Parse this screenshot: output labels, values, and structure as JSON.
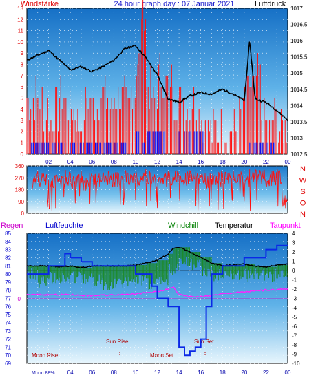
{
  "header": {
    "left_label": "Windstärke",
    "title": "24 hour graph day : 07 Januar 2021",
    "right_label": "Luftdruck"
  },
  "panel2": {
    "compass": [
      "N",
      "W",
      "S",
      "O",
      "N"
    ]
  },
  "panel3": {
    "legend": [
      {
        "key": "regen",
        "label": "Regen",
        "color": "#cc00cc"
      },
      {
        "key": "luftfeuchte",
        "label": "Luftfeuchte",
        "color": "#0000cc"
      },
      {
        "key": "windchill",
        "label": "Windchill",
        "color": "#008000"
      },
      {
        "key": "temperatur",
        "label": "Temperatur",
        "color": "#000000"
      },
      {
        "key": "taupunkt",
        "label": "Taupunkt",
        "color": "#ff00ff"
      }
    ],
    "astro": {
      "moon_rise": "Moon Rise",
      "sun_rise": "Sun Rise",
      "moon_set": "Moon Set",
      "sun_set": "Sun Set",
      "moon_phase": "Moon 88%"
    },
    "rain_zero_label": "0"
  },
  "chart_data": [
    {
      "type": "line",
      "name": "wind-and-pressure",
      "x_ticks": [
        "02",
        "04",
        "06",
        "08",
        "10",
        "12",
        "14",
        "16",
        "18",
        "20",
        "22",
        "00"
      ],
      "y_left_label": "Windstärke",
      "y_left_ticks": [
        "13",
        "12",
        "11",
        "10",
        "9",
        "8",
        "7",
        "6",
        "5",
        "4",
        "3",
        "2",
        "1",
        "0"
      ],
      "ylim_left": [
        0,
        13
      ],
      "y_right_label": "Luftdruck",
      "y_right_ticks": [
        "1017",
        "1016.5",
        "1016",
        "1015.5",
        "1015",
        "1014.5",
        "1014",
        "1013.5",
        "1013",
        "1012.5"
      ],
      "ylim_right": [
        1012.5,
        1017
      ],
      "pressure": {
        "x": [
          0,
          1,
          2,
          3,
          4,
          5,
          6,
          7,
          8,
          9,
          10,
          11,
          12,
          13,
          14,
          15,
          16,
          17,
          18,
          19,
          20,
          20.5,
          21,
          22,
          23,
          24
        ],
        "y": [
          1015.4,
          1015.55,
          1015.7,
          1015.4,
          1015.1,
          1015.2,
          1015.05,
          1015.2,
          1015.4,
          1015.75,
          1015.85,
          1015.45,
          1014.95,
          1014.2,
          1014.1,
          1014.3,
          1014.4,
          1014.35,
          1014.5,
          1014.35,
          1014.15,
          1016.0,
          1014.2,
          1014.1,
          1013.85,
          1013.55
        ]
      },
      "wind_gust": {
        "x": [
          0,
          0.5,
          1,
          1.5,
          2,
          2.5,
          3,
          3.5,
          4,
          4.5,
          5,
          5.5,
          6,
          6.5,
          7,
          7.5,
          8,
          8.5,
          9,
          9.5,
          10,
          10.5,
          11,
          11.5,
          12,
          12.5,
          13,
          13.5,
          14,
          14.5,
          15,
          15.5,
          16,
          16.5,
          17,
          17.5,
          18,
          18.5,
          19,
          19.5,
          20,
          20.5,
          21,
          21.5,
          22,
          22.5,
          23,
          23.5,
          24
        ],
        "y": [
          5,
          5,
          5,
          4,
          3,
          4,
          5,
          4,
          4,
          3,
          4,
          5,
          4,
          5,
          5,
          4,
          5,
          5,
          4,
          6,
          8,
          13,
          6,
          5,
          7,
          6,
          7,
          5,
          5,
          4,
          5,
          4,
          3,
          2,
          2,
          2,
          2,
          2,
          2,
          3,
          5,
          6,
          7,
          3,
          2,
          3,
          2,
          2,
          2
        ]
      },
      "wind_avg": {
        "x": [
          0,
          0.5,
          1,
          1.5,
          2,
          2.5,
          3,
          3.5,
          4,
          4.5,
          5,
          5.5,
          6,
          6.5,
          7,
          7.5,
          8,
          8.5,
          9,
          9.5,
          10,
          10.5,
          11,
          11.5,
          12,
          12.5,
          13,
          13.5,
          14,
          14.5,
          15,
          15.5,
          16,
          16.5,
          17,
          17.5,
          18,
          18.5,
          19,
          19.5,
          20,
          20.5,
          21,
          21.5,
          22,
          22.5,
          23,
          23.5,
          24
        ],
        "y": [
          1,
          1,
          1,
          1,
          1,
          1,
          1,
          1,
          1,
          1,
          1,
          1,
          1,
          1,
          1,
          1,
          1,
          1,
          1,
          1,
          2,
          1,
          2,
          2,
          2,
          2,
          2,
          2,
          2,
          2,
          2,
          2,
          2,
          0,
          0,
          0,
          0,
          0,
          0,
          0,
          0,
          1,
          1,
          1,
          1,
          1,
          0,
          0,
          0
        ]
      }
    },
    {
      "type": "line",
      "name": "wind-direction",
      "y_ticks": [
        "360",
        "270",
        "180",
        "90",
        "0"
      ],
      "ylim": [
        0,
        360
      ],
      "x": [
        0.5,
        1,
        1.5,
        2,
        2.5,
        3,
        3.5,
        4,
        4.5,
        5,
        5.5,
        6,
        6.5,
        7,
        7.5,
        8,
        8.5,
        9,
        9.5,
        10,
        10.5,
        11,
        11.5,
        12,
        12.5,
        13,
        13.5,
        14,
        14.5,
        15,
        15.5,
        16,
        16.5,
        17,
        17.5,
        18,
        18.5,
        19,
        19.5,
        20,
        20.5,
        21,
        21.5,
        22,
        22.5,
        23,
        23.5,
        24
      ],
      "y": [
        240,
        260,
        250,
        230,
        240,
        250,
        270,
        240,
        260,
        230,
        250,
        240,
        260,
        270,
        250,
        260,
        240,
        270,
        250,
        260,
        280,
        270,
        260,
        240,
        250,
        260,
        270,
        250,
        260,
        270,
        280,
        260,
        250,
        270,
        260,
        280,
        270,
        290,
        270,
        260,
        280,
        270,
        270,
        250,
        270,
        280,
        100,
        60
      ]
    },
    {
      "type": "line",
      "name": "humidity-temperature",
      "y_left_ticks": [
        "85",
        "84",
        "83",
        "82",
        "81",
        "80",
        "79",
        "78",
        "77",
        "76",
        "75",
        "74",
        "73",
        "72",
        "71",
        "70",
        "69"
      ],
      "ylim_left": [
        69,
        85
      ],
      "y_right_ticks": [
        "4",
        "3",
        "2",
        "1",
        "0",
        "-1",
        "-2",
        "-3",
        "-4",
        "-5",
        "-6",
        "-7",
        "-8",
        "-9",
        "-10"
      ],
      "ylim_right": [
        -10,
        4
      ],
      "luftfeuchte": {
        "x": [
          0,
          1.5,
          2,
          3,
          3.5,
          4,
          5,
          6,
          8,
          10,
          11.5,
          12,
          13,
          14,
          14.5,
          15,
          15.5,
          16,
          16.5,
          17,
          18,
          20,
          22,
          23,
          24
        ],
        "y": [
          80,
          80,
          81,
          81,
          82.5,
          82,
          81.5,
          81,
          81,
          80,
          78.5,
          77,
          76,
          71,
          70,
          70.5,
          71,
          72,
          76,
          80,
          81,
          82,
          83,
          83.5,
          83.5
        ]
      },
      "temperatur": {
        "x": [
          0,
          1,
          2,
          3,
          4,
          5,
          6,
          7,
          8,
          9,
          10,
          11,
          12,
          13,
          13.5,
          14,
          15,
          16,
          17,
          18,
          19,
          20,
          21,
          22,
          23,
          24
        ],
        "y": [
          0.5,
          0.5,
          0.5,
          0.4,
          0.5,
          0.3,
          0.5,
          0.5,
          0.5,
          0.5,
          0.6,
          0.8,
          1.1,
          1.8,
          2.4,
          2.5,
          2.0,
          1.4,
          0.8,
          0.5,
          0.6,
          0.7,
          0.5,
          0.4,
          0.6,
          0.7
        ]
      },
      "windchill": {
        "x": [
          0,
          1,
          2,
          3,
          4,
          5,
          6,
          7,
          8,
          9,
          10,
          11,
          12,
          13,
          14,
          15,
          16,
          17,
          18,
          19,
          20,
          21,
          22,
          23,
          24
        ],
        "y": [
          0.3,
          -0.5,
          0,
          -0.2,
          0,
          -0.3,
          -0.4,
          -0.8,
          -0.6,
          -0.7,
          -0.4,
          -0.8,
          -0.4,
          0.8,
          1.5,
          1.3,
          0.6,
          0.2,
          0.1,
          0.3,
          0.2,
          0.3,
          0.2,
          0.3,
          0.5
        ]
      },
      "taupunkt": {
        "x": [
          0,
          2,
          4,
          6,
          8,
          10,
          12,
          13,
          13.5,
          14,
          15,
          16,
          17,
          18,
          20,
          22,
          24
        ],
        "y": [
          -2.6,
          -2.6,
          -2.6,
          -2.7,
          -2.6,
          -2.5,
          -2.3,
          -2.0,
          -1.8,
          -2.6,
          -2.8,
          -2.8,
          -2.7,
          -2.5,
          -2.3,
          -2.1,
          -2.0
        ]
      },
      "regen": {
        "x": [
          0,
          24
        ],
        "y": [
          0,
          0
        ]
      }
    }
  ]
}
